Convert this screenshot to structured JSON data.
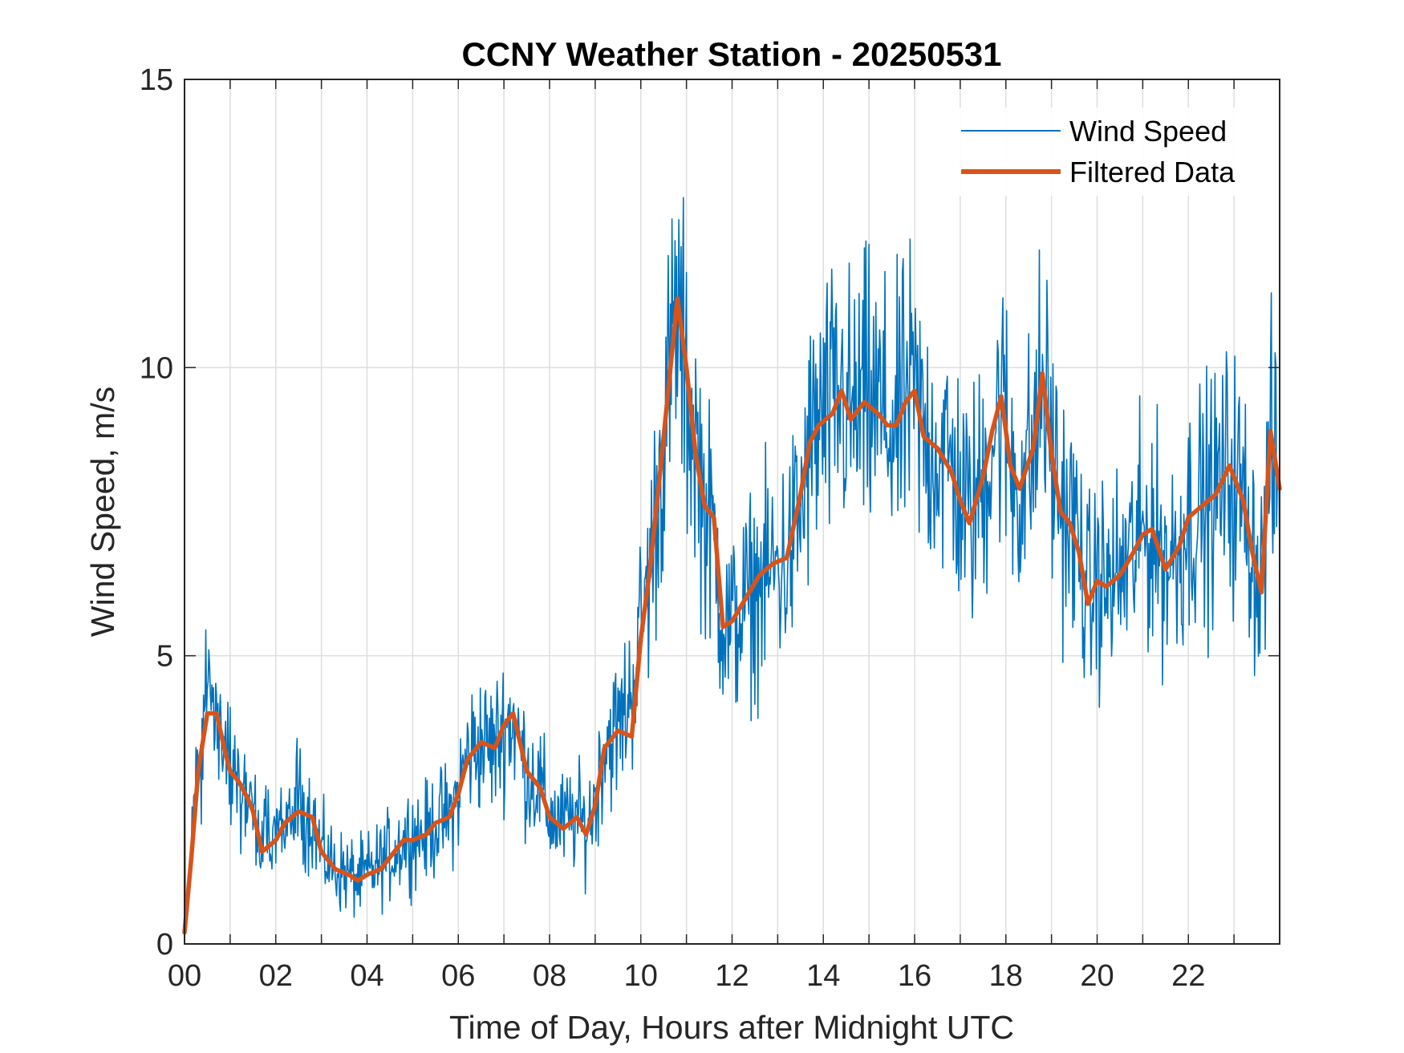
{
  "chart_data": {
    "type": "line",
    "title": "CCNY Weather Station - 20250531",
    "xlabel": "Time of Day, Hours after Midnight UTC",
    "ylabel": "Wind Speed, m/s",
    "xlim": [
      0,
      24
    ],
    "ylim": [
      0,
      15
    ],
    "xticks": [
      0,
      2,
      4,
      6,
      8,
      10,
      12,
      14,
      16,
      18,
      20,
      22
    ],
    "xtick_labels": [
      "00",
      "02",
      "04",
      "06",
      "08",
      "10",
      "12",
      "14",
      "16",
      "18",
      "20",
      "22"
    ],
    "yticks": [
      0,
      5,
      10,
      15
    ],
    "ytick_labels": [
      "0",
      "5",
      "10",
      "15"
    ],
    "grid": true,
    "legend_position": "top-right",
    "series": [
      {
        "name": "Wind Speed",
        "color": "#0072BD",
        "style": "noisy raw measurements around the filtered trend",
        "x": [
          0,
          0.15,
          0.3,
          0.5,
          0.7,
          0.9,
          1.0,
          1.2,
          1.4,
          1.5,
          1.7,
          2.0,
          2.2,
          2.5,
          2.8,
          3.0,
          3.3,
          3.6,
          3.8,
          4.0,
          4.3,
          4.6,
          4.8,
          5.0,
          5.3,
          5.5,
          5.8,
          6.0,
          6.2,
          6.5,
          6.8,
          7.0,
          7.2,
          7.5,
          7.8,
          8.0,
          8.3,
          8.6,
          8.8,
          9.0,
          9.2,
          9.5,
          9.8,
          10.0,
          10.2,
          10.4,
          10.6,
          10.8,
          11.0,
          11.2,
          11.4,
          11.6,
          11.8,
          12.0,
          12.3,
          12.6,
          12.9,
          13.2,
          13.5,
          13.7,
          13.9,
          14.2,
          14.4,
          14.6,
          14.9,
          15.2,
          15.4,
          15.6,
          15.8,
          16.0,
          16.2,
          16.5,
          16.8,
          17.0,
          17.2,
          17.5,
          17.7,
          17.9,
          18.1,
          18.3,
          18.6,
          18.8,
          19.0,
          19.2,
          19.4,
          19.6,
          19.8,
          20.0,
          20.2,
          20.5,
          20.8,
          21.0,
          21.2,
          21.5,
          21.8,
          22.0,
          22.3,
          22.6,
          22.9,
          23.2,
          23.4,
          23.6,
          23.8,
          24.0
        ],
        "values": [
          0.3,
          1.8,
          3.2,
          4.1,
          4.0,
          3.4,
          3.0,
          2.8,
          2.5,
          2.3,
          1.7,
          1.8,
          2.1,
          2.4,
          2.2,
          1.6,
          1.3,
          1.2,
          1.1,
          1.2,
          1.4,
          1.6,
          1.8,
          1.9,
          1.9,
          2.1,
          2.2,
          2.6,
          3.3,
          3.5,
          3.4,
          3.8,
          3.9,
          3.0,
          2.7,
          2.2,
          2.1,
          2.2,
          2.0,
          2.5,
          3.5,
          3.7,
          4.4,
          5.5,
          6.5,
          8.0,
          9.5,
          11.0,
          9.5,
          8.8,
          7.5,
          7.0,
          5.6,
          5.5,
          5.9,
          6.2,
          6.5,
          6.6,
          7.5,
          8.5,
          9.0,
          9.2,
          9.5,
          9.1,
          9.4,
          9.3,
          9.0,
          8.9,
          9.4,
          9.5,
          8.8,
          8.6,
          8.3,
          7.8,
          7.4,
          8.0,
          8.8,
          9.4,
          8.4,
          7.9,
          8.5,
          9.8,
          8.6,
          7.6,
          7.3,
          6.9,
          5.9,
          6.3,
          6.2,
          6.4,
          6.8,
          7.1,
          7.2,
          6.6,
          6.9,
          7.4,
          7.6,
          7.8,
          8.2,
          7.7,
          6.9,
          6.3,
          8.5,
          7.8
        ]
      },
      {
        "name": "Filtered Data",
        "color": "#D95319",
        "x": [
          0,
          0.15,
          0.3,
          0.5,
          0.7,
          0.9,
          1.0,
          1.2,
          1.4,
          1.5,
          1.7,
          2.0,
          2.2,
          2.5,
          2.8,
          3.0,
          3.3,
          3.6,
          3.8,
          4.0,
          4.3,
          4.6,
          4.8,
          5.0,
          5.3,
          5.5,
          5.8,
          6.0,
          6.2,
          6.5,
          6.8,
          7.0,
          7.2,
          7.5,
          7.8,
          8.0,
          8.3,
          8.6,
          8.8,
          9.0,
          9.2,
          9.5,
          9.8,
          10.0,
          10.2,
          10.4,
          10.6,
          10.8,
          11.0,
          11.2,
          11.4,
          11.6,
          11.8,
          12.0,
          12.3,
          12.6,
          12.9,
          13.2,
          13.5,
          13.7,
          13.9,
          14.2,
          14.4,
          14.6,
          14.9,
          15.2,
          15.4,
          15.6,
          15.8,
          16.0,
          16.2,
          16.5,
          16.8,
          17.0,
          17.2,
          17.5,
          17.7,
          17.9,
          18.1,
          18.3,
          18.6,
          18.8,
          19.0,
          19.2,
          19.4,
          19.6,
          19.8,
          20.0,
          20.2,
          20.5,
          20.8,
          21.0,
          21.2,
          21.5,
          21.8,
          22.0,
          22.3,
          22.6,
          22.9,
          23.2,
          23.4,
          23.6,
          23.8,
          24.0
        ],
        "values": [
          0.2,
          1.5,
          3.0,
          4.0,
          4.0,
          3.3,
          3.0,
          2.8,
          2.5,
          2.3,
          1.6,
          1.8,
          2.1,
          2.3,
          2.2,
          1.6,
          1.3,
          1.2,
          1.1,
          1.2,
          1.3,
          1.6,
          1.8,
          1.8,
          1.9,
          2.1,
          2.2,
          2.6,
          3.2,
          3.5,
          3.4,
          3.8,
          4.0,
          3.0,
          2.7,
          2.2,
          2.0,
          2.2,
          1.9,
          2.4,
          3.4,
          3.7,
          3.6,
          5.3,
          6.5,
          8.0,
          9.6,
          11.2,
          10.0,
          8.5,
          7.6,
          7.4,
          5.5,
          5.6,
          6.0,
          6.4,
          6.6,
          6.7,
          7.8,
          8.7,
          9.0,
          9.2,
          9.6,
          9.1,
          9.4,
          9.2,
          9.0,
          9.0,
          9.4,
          9.6,
          8.8,
          8.6,
          8.2,
          7.7,
          7.3,
          8.1,
          8.9,
          9.5,
          8.3,
          7.9,
          8.6,
          9.9,
          8.5,
          7.5,
          7.3,
          6.8,
          5.9,
          6.3,
          6.2,
          6.4,
          6.8,
          7.1,
          7.2,
          6.5,
          6.9,
          7.4,
          7.6,
          7.8,
          8.3,
          7.7,
          6.8,
          6.1,
          8.9,
          7.9
        ]
      }
    ]
  }
}
